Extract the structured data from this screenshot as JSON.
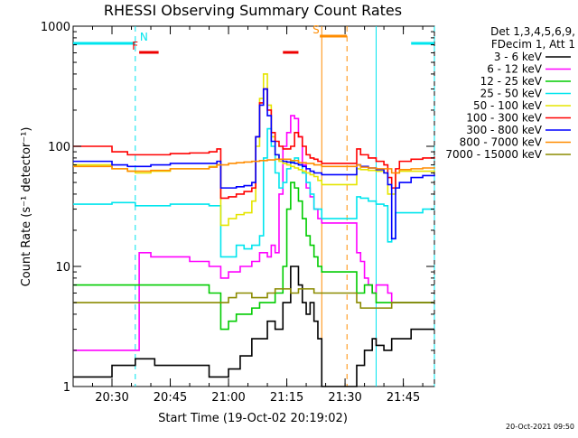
{
  "chart_data": {
    "type": "line",
    "title": "RHESSI Observing Summary Count Rates",
    "xlabel": "Start Time (19-Oct-02 20:19:02)",
    "ylabel": "Count Rate (s⁻¹ detector⁻¹)",
    "yscale": "log",
    "ylim": [
      1,
      1000
    ],
    "xlim_minutes": [
      20,
      113
    ],
    "x_ticks": [
      {
        "minutes": 30,
        "label": "20:30"
      },
      {
        "minutes": 45,
        "label": "20:45"
      },
      {
        "minutes": 60,
        "label": "21:00"
      },
      {
        "minutes": 75,
        "label": "21:15"
      },
      {
        "minutes": 90,
        "label": "21:30"
      },
      {
        "minutes": 105,
        "label": "21:45"
      }
    ],
    "y_ticks": [
      {
        "value": 1,
        "label": "1"
      },
      {
        "value": 10,
        "label": "10"
      },
      {
        "value": 100,
        "label": "100"
      },
      {
        "value": 1000,
        "label": "1000"
      }
    ],
    "legend_header": [
      "Det 1,3,4,5,6,9,",
      "FDecim 1, Att 1"
    ],
    "legend_position": "right",
    "timestamp": "20-Oct-2021 09:50",
    "flags": [
      {
        "label": "N",
        "color": "#00e5ee",
        "segments": [
          [
            20,
            36
          ],
          [
            107,
            113
          ]
        ]
      },
      {
        "label": "F",
        "color": "#ee0000",
        "segments": [
          [
            37,
            42
          ],
          [
            74,
            78
          ]
        ]
      },
      {
        "label": "S",
        "color": "#ff8c00",
        "segments": [
          [
            83.5,
            90.5
          ]
        ]
      }
    ],
    "vertical_lines": [
      {
        "minutes": 36,
        "color": "#00e5ee",
        "style": "dashed"
      },
      {
        "minutes": 98,
        "color": "#00e5ee",
        "style": "solid"
      },
      {
        "minutes": 113,
        "color": "#00e5ee",
        "style": "dashed"
      },
      {
        "minutes": 84,
        "color": "#ff8c00",
        "style": "solid"
      },
      {
        "minutes": 90.5,
        "color": "#ff8c00",
        "style": "dashed"
      }
    ],
    "series": [
      {
        "name": "3 - 6 keV",
        "color": "#000000",
        "x": [
          20,
          30,
          34,
          36,
          41,
          45,
          50,
          55,
          57,
          60,
          63,
          66,
          68,
          70,
          72,
          74,
          76,
          78,
          79,
          80,
          81,
          82,
          83,
          84,
          93,
          95,
          97,
          98,
          100,
          102,
          104,
          107,
          110,
          113
        ],
        "y": [
          1.2,
          1.5,
          1.5,
          1.7,
          1.5,
          1.5,
          1.5,
          1.2,
          1.2,
          1.4,
          1.8,
          2.5,
          2.5,
          3.5,
          3.0,
          5.0,
          10,
          7,
          5,
          4,
          5,
          3.5,
          2.5,
          1,
          1.5,
          2,
          2.5,
          2.2,
          2,
          2.5,
          2.5,
          3,
          3,
          3
        ]
      },
      {
        "name": "6 - 12 keV",
        "color": "#ff00ff",
        "x": [
          20,
          30,
          34,
          36,
          37,
          40,
          45,
          50,
          55,
          57,
          58,
          60,
          63,
          66,
          68,
          70,
          71,
          72,
          73,
          74,
          75,
          76,
          77,
          78,
          79,
          80,
          81,
          82,
          83,
          84,
          93,
          94,
          95,
          96,
          97,
          98,
          100,
          101,
          102,
          104,
          107,
          110,
          113
        ],
        "y": [
          2,
          2,
          2,
          2,
          13,
          12,
          12,
          11,
          10,
          10,
          8,
          9,
          10,
          11,
          13,
          12,
          15,
          13,
          40,
          100,
          130,
          180,
          170,
          120,
          70,
          45,
          38,
          30,
          25,
          23,
          13,
          11,
          8,
          7,
          6,
          7,
          7,
          6,
          5,
          5,
          5,
          5,
          5
        ],
        "note": "magenta"
      },
      {
        "name": "12 - 25 keV",
        "color": "#00cc00",
        "x": [
          20,
          30,
          34,
          36,
          40,
          45,
          50,
          55,
          57,
          58,
          60,
          62,
          64,
          66,
          68,
          70,
          72,
          74,
          75,
          76,
          77,
          78,
          79,
          80,
          81,
          82,
          83,
          84,
          93,
          95,
          97,
          98,
          100,
          102,
          104,
          107,
          110,
          113
        ],
        "y": [
          7,
          7,
          7,
          7,
          7,
          7,
          7,
          6,
          6,
          3,
          3.5,
          4,
          4,
          4.5,
          5,
          5,
          6,
          10,
          30,
          50,
          45,
          35,
          25,
          18,
          15,
          12,
          10,
          9,
          6,
          7,
          6,
          5,
          5,
          5,
          5,
          5,
          5,
          5
        ]
      },
      {
        "name": "25 - 50 keV",
        "color": "#00e5ee",
        "x": [
          20,
          30,
          34,
          36,
          40,
          45,
          50,
          55,
          57,
          58,
          60,
          62,
          64,
          66,
          68,
          69,
          70,
          71,
          72,
          73,
          74,
          75,
          76,
          77,
          78,
          79,
          80,
          81,
          82,
          84,
          93,
          94,
          96,
          98,
          100,
          101,
          102,
          103,
          104,
          107,
          110,
          113
        ],
        "y": [
          33,
          34,
          34,
          32,
          32,
          33,
          33,
          32,
          32,
          12,
          12,
          15,
          14,
          15,
          18,
          80,
          140,
          100,
          60,
          45,
          50,
          65,
          75,
          80,
          70,
          60,
          50,
          40,
          30,
          25,
          38,
          37,
          35,
          33,
          32,
          16,
          17,
          28,
          28,
          28,
          30,
          30
        ]
      },
      {
        "name": "50 - 100 keV",
        "color": "#e5e500",
        "x": [
          20,
          30,
          34,
          36,
          40,
          45,
          50,
          55,
          57,
          58,
          60,
          62,
          64,
          66,
          67,
          68,
          69,
          70,
          71,
          72,
          73,
          74,
          75,
          76,
          77,
          78,
          79,
          80,
          81,
          82,
          83,
          84,
          93,
          94,
          96,
          98,
          100,
          101,
          102,
          103,
          104,
          107,
          110,
          113
        ],
        "y": [
          70,
          65,
          62,
          60,
          62,
          65,
          65,
          68,
          70,
          22,
          25,
          27,
          28,
          35,
          100,
          250,
          400,
          220,
          120,
          85,
          75,
          72,
          70,
          68,
          66,
          64,
          62,
          60,
          58,
          56,
          52,
          48,
          65,
          64,
          63,
          62,
          60,
          40,
          40,
          60,
          62,
          62,
          62,
          63
        ]
      },
      {
        "name": "100 - 300 keV",
        "color": "#ff0000",
        "x": [
          20,
          30,
          34,
          36,
          40,
          45,
          50,
          55,
          57,
          58,
          60,
          62,
          64,
          66,
          67,
          68,
          69,
          70,
          71,
          72,
          73,
          74,
          75,
          76,
          77,
          78,
          79,
          80,
          81,
          82,
          83,
          84,
          93,
          94,
          96,
          98,
          100,
          101,
          102,
          103,
          104,
          107,
          110,
          113
        ],
        "y": [
          100,
          90,
          85,
          85,
          85,
          87,
          88,
          90,
          95,
          37,
          38,
          40,
          42,
          45,
          120,
          230,
          300,
          200,
          130,
          110,
          100,
          95,
          95,
          100,
          130,
          120,
          100,
          85,
          80,
          78,
          75,
          72,
          95,
          85,
          80,
          75,
          70,
          55,
          45,
          65,
          75,
          78,
          80,
          82
        ]
      },
      {
        "name": "300 - 800 keV",
        "color": "#0000ff",
        "x": [
          20,
          30,
          34,
          36,
          40,
          45,
          50,
          55,
          57,
          58,
          60,
          62,
          64,
          66,
          67,
          68,
          69,
          70,
          71,
          72,
          73,
          74,
          75,
          76,
          77,
          78,
          79,
          80,
          81,
          82,
          84,
          93,
          94,
          96,
          98,
          100,
          101,
          102,
          103,
          104,
          107,
          110,
          113
        ],
        "y": [
          75,
          70,
          68,
          68,
          70,
          72,
          72,
          72,
          75,
          45,
          45,
          46,
          47,
          50,
          120,
          220,
          300,
          180,
          110,
          85,
          78,
          75,
          74,
          73,
          72,
          70,
          68,
          65,
          62,
          60,
          58,
          70,
          68,
          66,
          64,
          60,
          48,
          17,
          45,
          50,
          55,
          57,
          58
        ]
      },
      {
        "name": "800 - 7000 keV",
        "color": "#ff8c00",
        "x": [
          20,
          30,
          34,
          36,
          40,
          45,
          50,
          55,
          57,
          60,
          62,
          64,
          66,
          68,
          70,
          72,
          74,
          76,
          78,
          80,
          82,
          84,
          93,
          94,
          96,
          98,
          100,
          102,
          104,
          107,
          110,
          113
        ],
        "y": [
          68,
          65,
          62,
          62,
          63,
          65,
          65,
          67,
          70,
          72,
          73,
          74,
          75,
          76,
          77,
          78,
          78,
          76,
          73,
          72,
          70,
          68,
          70,
          67,
          66,
          65,
          65,
          60,
          64,
          65,
          66,
          67
        ]
      },
      {
        "name": "7000 - 15000 keV",
        "color": "#8b8b00",
        "x": [
          20,
          30,
          34,
          36,
          40,
          45,
          50,
          55,
          57,
          60,
          62,
          64,
          66,
          68,
          70,
          72,
          74,
          76,
          78,
          80,
          82,
          84,
          93,
          94,
          96,
          98,
          100,
          102,
          104,
          107,
          110,
          113
        ],
        "y": [
          5,
          5,
          5,
          5,
          5,
          5,
          5,
          5,
          5,
          5.5,
          6,
          6,
          5.5,
          5.5,
          6,
          6.5,
          6.5,
          6,
          6.5,
          6.5,
          6,
          6,
          5,
          4.5,
          4.5,
          4.5,
          4.5,
          5,
          5,
          5,
          5,
          5
        ]
      }
    ]
  }
}
